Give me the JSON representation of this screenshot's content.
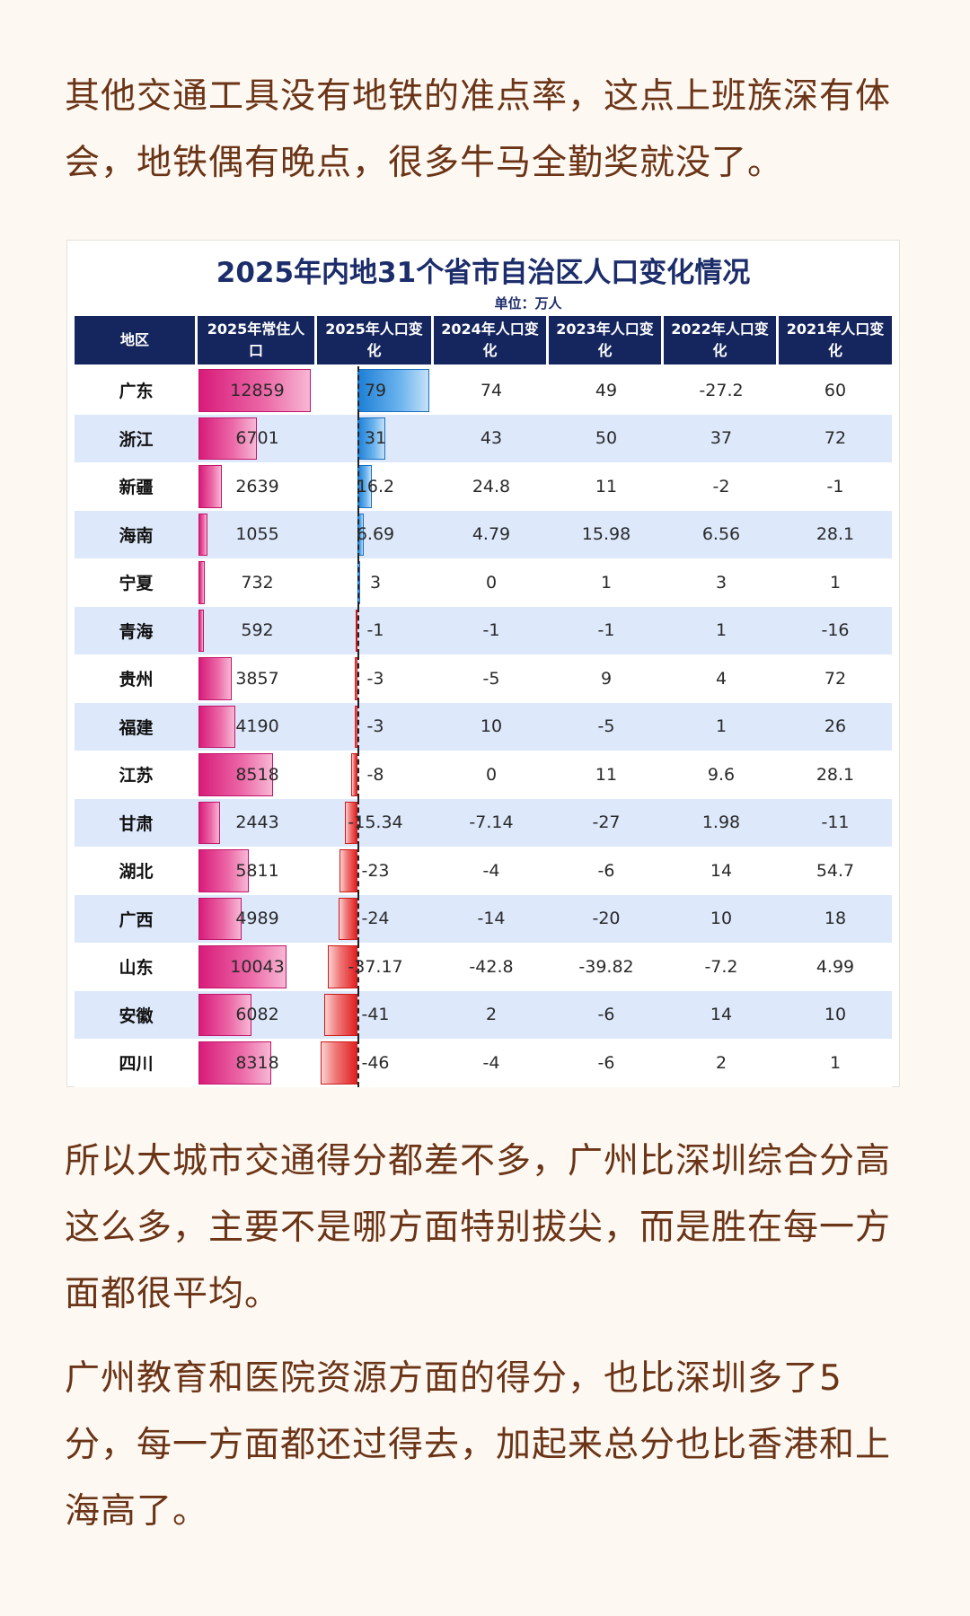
{
  "paragraphs": {
    "p1": "其他交通工具没有地铁的准点率，这点上班族深有体会，地铁偶有晚点，很多牛马全勤奖就没了。",
    "p2": "所以大城市交通得分都差不多，广州比深圳综合分高这么多，主要不是哪方面特别拔尖，而是胜在每一方面都很平均。",
    "p3": "广州教育和医院资源方面的得分，也比深圳多了5分，每一方面都还过得去，加起来总分也比香港和上海高了。"
  },
  "table": {
    "title": "2025年内地31个省市自治区人口变化情况",
    "unit": "单位：万人",
    "headers": [
      "地区",
      "2025年常住人口",
      "2025年人口变化",
      "2024年人口变化",
      "2023年人口变化",
      "2022年人口变化",
      "2021年人口变化"
    ],
    "colors": {
      "header_bg": "#15265f",
      "row_alt": "#dde8fb",
      "pop_bar": "#d81b7a",
      "pos_bar": "#1e7fd6",
      "neg_bar": "#e02020"
    },
    "rows": [
      {
        "region": "广东",
        "pop": "12859",
        "c2025": "79",
        "c2024": "74",
        "c2023": "49",
        "c2022": "-27.2",
        "c2021": "60"
      },
      {
        "region": "浙江",
        "pop": "6701",
        "c2025": "31",
        "c2024": "43",
        "c2023": "50",
        "c2022": "37",
        "c2021": "72"
      },
      {
        "region": "新疆",
        "pop": "2639",
        "c2025": "16.2",
        "c2024": "24.8",
        "c2023": "11",
        "c2022": "-2",
        "c2021": "-1"
      },
      {
        "region": "海南",
        "pop": "1055",
        "c2025": "6.69",
        "c2024": "4.79",
        "c2023": "15.98",
        "c2022": "6.56",
        "c2021": "28.1"
      },
      {
        "region": "宁夏",
        "pop": "732",
        "c2025": "3",
        "c2024": "0",
        "c2023": "1",
        "c2022": "3",
        "c2021": "1"
      },
      {
        "region": "青海",
        "pop": "592",
        "c2025": "-1",
        "c2024": "-1",
        "c2023": "-1",
        "c2022": "1",
        "c2021": "-16"
      },
      {
        "region": "贵州",
        "pop": "3857",
        "c2025": "-3",
        "c2024": "-5",
        "c2023": "9",
        "c2022": "4",
        "c2021": "72"
      },
      {
        "region": "福建",
        "pop": "4190",
        "c2025": "-3",
        "c2024": "10",
        "c2023": "-5",
        "c2022": "1",
        "c2021": "26"
      },
      {
        "region": "江苏",
        "pop": "8518",
        "c2025": "-8",
        "c2024": "0",
        "c2023": "11",
        "c2022": "9.6",
        "c2021": "28.1"
      },
      {
        "region": "甘肃",
        "pop": "2443",
        "c2025": "-15.34",
        "c2024": "-7.14",
        "c2023": "-27",
        "c2022": "1.98",
        "c2021": "-11"
      },
      {
        "region": "湖北",
        "pop": "5811",
        "c2025": "-23",
        "c2024": "-4",
        "c2023": "-6",
        "c2022": "14",
        "c2021": "54.7"
      },
      {
        "region": "广西",
        "pop": "4989",
        "c2025": "-24",
        "c2024": "-14",
        "c2023": "-20",
        "c2022": "10",
        "c2021": "18"
      },
      {
        "region": "山东",
        "pop": "10043",
        "c2025": "-37.17",
        "c2024": "-42.8",
        "c2023": "-39.82",
        "c2022": "-7.2",
        "c2021": "4.99"
      },
      {
        "region": "安徽",
        "pop": "6082",
        "c2025": "-41",
        "c2024": "2",
        "c2023": "-6",
        "c2022": "14",
        "c2021": "10"
      },
      {
        "region": "四川",
        "pop": "8318",
        "c2025": "-46",
        "c2024": "-4",
        "c2023": "-6",
        "c2022": "2",
        "c2021": "1"
      }
    ]
  }
}
